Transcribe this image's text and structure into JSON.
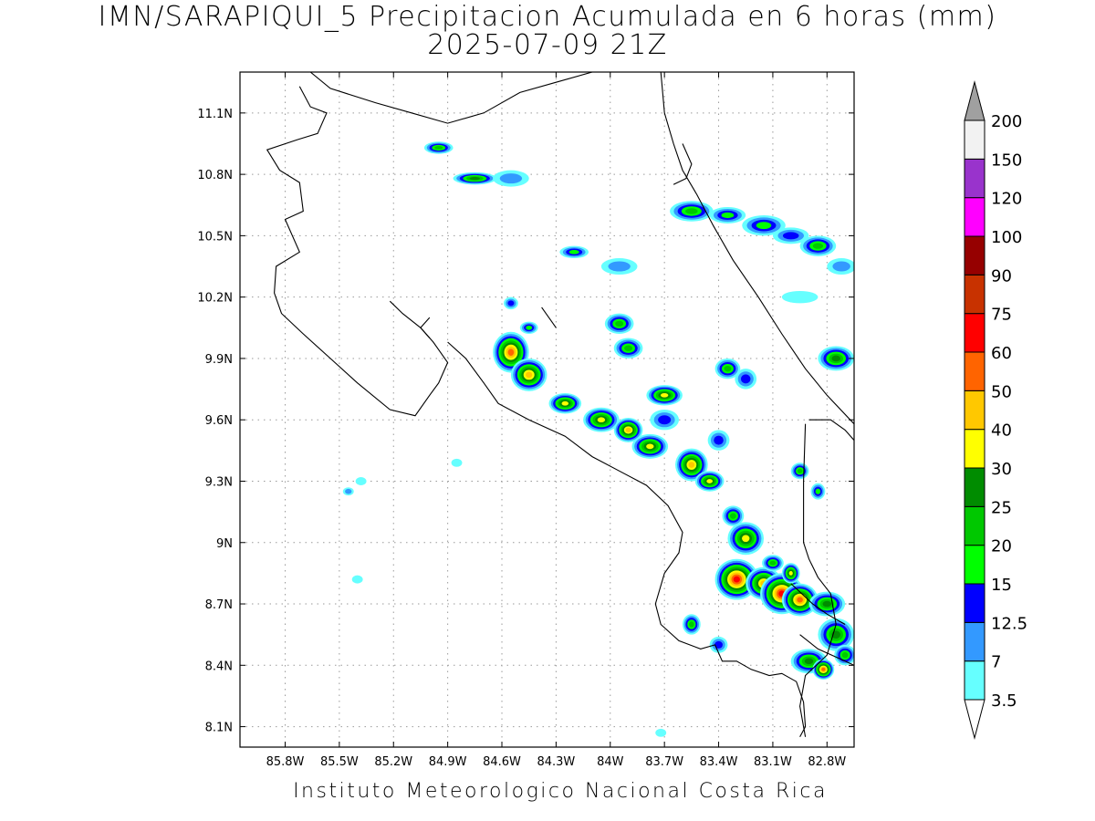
{
  "title": {
    "line1": "IMN/SARAPIQUI_5 Precipitacion Acumulada en 6 horas (mm)",
    "line2": "2025-07-09 21Z"
  },
  "footer": "Instituto Meteorologico Nacional Costa Rica",
  "map": {
    "lon_range": [
      -86.05,
      -82.65
    ],
    "lat_range": [
      8.0,
      11.3
    ],
    "lon_ticks": [
      {
        "value": -85.8,
        "label": "85.8W"
      },
      {
        "value": -85.5,
        "label": "85.5W"
      },
      {
        "value": -85.2,
        "label": "85.2W"
      },
      {
        "value": -84.9,
        "label": "84.9W"
      },
      {
        "value": -84.6,
        "label": "84.6W"
      },
      {
        "value": -84.3,
        "label": "84.3W"
      },
      {
        "value": -84.0,
        "label": "84W"
      },
      {
        "value": -83.7,
        "label": "83.7W"
      },
      {
        "value": -83.4,
        "label": "83.4W"
      },
      {
        "value": -83.1,
        "label": "83.1W"
      },
      {
        "value": -82.8,
        "label": "82.8W"
      }
    ],
    "lat_ticks": [
      {
        "value": 11.1,
        "label": "11.1N"
      },
      {
        "value": 10.8,
        "label": "10.8N"
      },
      {
        "value": 10.5,
        "label": "10.5N"
      },
      {
        "value": 10.2,
        "label": "10.2N"
      },
      {
        "value": 9.9,
        "label": "9.9N"
      },
      {
        "value": 9.6,
        "label": "9.6N"
      },
      {
        "value": 9.3,
        "label": "9.3N"
      },
      {
        "value": 9.0,
        "label": "9N"
      },
      {
        "value": 8.7,
        "label": "8.7N"
      },
      {
        "value": 8.4,
        "label": "8.4N"
      },
      {
        "value": 8.1,
        "label": "8.1N"
      }
    ],
    "grid": "dotted",
    "coastlines": [
      [
        [
          -85.72,
          11.23
        ],
        [
          -85.66,
          11.13
        ],
        [
          -85.57,
          11.1
        ],
        [
          -85.62,
          11.0
        ],
        [
          -85.73,
          10.97
        ],
        [
          -85.9,
          10.92
        ],
        [
          -85.83,
          10.82
        ],
        [
          -85.72,
          10.76
        ],
        [
          -85.7,
          10.62
        ],
        [
          -85.8,
          10.58
        ],
        [
          -85.72,
          10.42
        ],
        [
          -85.85,
          10.35
        ],
        [
          -85.86,
          10.22
        ],
        [
          -85.82,
          10.12
        ],
        [
          -85.7,
          10.02
        ],
        [
          -85.55,
          9.9
        ],
        [
          -85.4,
          9.78
        ],
        [
          -85.22,
          9.65
        ],
        [
          -85.08,
          9.62
        ],
        [
          -85.0,
          9.72
        ],
        [
          -84.95,
          9.78
        ],
        [
          -84.9,
          9.88
        ],
        [
          -84.98,
          9.98
        ],
        [
          -85.05,
          10.05
        ],
        [
          -85.15,
          10.12
        ],
        [
          -85.22,
          10.18
        ]
      ],
      [
        [
          -84.9,
          9.98
        ],
        [
          -84.8,
          9.9
        ],
        [
          -84.7,
          9.78
        ],
        [
          -84.62,
          9.68
        ],
        [
          -84.45,
          9.6
        ],
        [
          -84.25,
          9.52
        ],
        [
          -84.1,
          9.42
        ],
        [
          -83.95,
          9.35
        ],
        [
          -83.8,
          9.28
        ],
        [
          -83.68,
          9.18
        ],
        [
          -83.6,
          9.05
        ],
        [
          -83.62,
          8.95
        ],
        [
          -83.7,
          8.85
        ],
        [
          -83.75,
          8.7
        ],
        [
          -83.72,
          8.6
        ],
        [
          -83.62,
          8.52
        ],
        [
          -83.5,
          8.48
        ],
        [
          -83.42,
          8.5
        ],
        [
          -83.38,
          8.42
        ],
        [
          -83.3,
          8.42
        ],
        [
          -83.22,
          8.38
        ],
        [
          -83.12,
          8.35
        ],
        [
          -83.05,
          8.36
        ],
        [
          -82.97,
          8.32
        ],
        [
          -82.93,
          8.22
        ],
        [
          -82.92,
          8.1
        ],
        [
          -82.95,
          8.05
        ]
      ],
      [
        [
          -83.72,
          11.3
        ],
        [
          -83.7,
          11.1
        ],
        [
          -83.65,
          10.95
        ],
        [
          -83.6,
          10.82
        ],
        [
          -83.52,
          10.7
        ],
        [
          -83.43,
          10.55
        ],
        [
          -83.32,
          10.38
        ],
        [
          -83.18,
          10.2
        ],
        [
          -83.05,
          10.02
        ],
        [
          -82.92,
          9.85
        ],
        [
          -82.8,
          9.72
        ],
        [
          -82.65,
          9.58
        ]
      ],
      [
        [
          -83.6,
          10.95
        ],
        [
          -83.55,
          10.85
        ],
        [
          -83.58,
          10.78
        ],
        [
          -83.65,
          10.75
        ]
      ],
      [
        [
          -84.1,
          11.3
        ],
        [
          -84.3,
          11.25
        ],
        [
          -84.5,
          11.2
        ],
        [
          -84.7,
          11.1
        ],
        [
          -84.9,
          11.05
        ],
        [
          -85.1,
          11.1
        ],
        [
          -85.3,
          11.15
        ],
        [
          -85.55,
          11.22
        ],
        [
          -85.66,
          11.3
        ]
      ],
      [
        [
          -82.9,
          9.6
        ],
        [
          -82.78,
          9.6
        ],
        [
          -82.7,
          9.55
        ],
        [
          -82.65,
          9.5
        ]
      ],
      [
        [
          -82.92,
          9.58
        ],
        [
          -82.93,
          9.3
        ],
        [
          -82.93,
          9.0
        ],
        [
          -82.9,
          8.92
        ],
        [
          -82.85,
          8.83
        ],
        [
          -82.78,
          8.75
        ],
        [
          -82.75,
          8.6
        ],
        [
          -82.8,
          8.45
        ],
        [
          -82.92,
          8.35
        ],
        [
          -82.95,
          8.2
        ],
        [
          -82.92,
          8.05
        ]
      ],
      [
        [
          -82.95,
          8.55
        ],
        [
          -82.85,
          8.48
        ],
        [
          -82.7,
          8.42
        ],
        [
          -82.65,
          8.4
        ]
      ],
      [
        [
          -83.0,
          8.8
        ],
        [
          -82.88,
          8.7
        ],
        [
          -82.8,
          8.65
        ],
        [
          -82.7,
          8.6
        ]
      ],
      [
        [
          -84.38,
          10.15
        ],
        [
          -84.3,
          10.05
        ]
      ],
      [
        [
          -85.0,
          10.1
        ],
        [
          -85.05,
          10.05
        ],
        [
          -85.0,
          10.0
        ]
      ]
    ],
    "precip_cells": [
      [
        -84.95,
        10.93,
        0.08,
        0.03,
        20
      ],
      [
        -84.75,
        10.78,
        0.12,
        0.03,
        25
      ],
      [
        -84.55,
        10.78,
        0.1,
        0.04,
        7
      ],
      [
        -84.2,
        10.42,
        0.08,
        0.03,
        15
      ],
      [
        -83.95,
        10.35,
        0.1,
        0.04,
        7
      ],
      [
        -83.55,
        10.62,
        0.12,
        0.05,
        20
      ],
      [
        -83.35,
        10.6,
        0.1,
        0.04,
        15
      ],
      [
        -83.15,
        10.55,
        0.12,
        0.05,
        15
      ],
      [
        -83.0,
        10.5,
        0.1,
        0.04,
        12.5
      ],
      [
        -82.85,
        10.45,
        0.1,
        0.05,
        20
      ],
      [
        -82.72,
        10.35,
        0.08,
        0.04,
        7
      ],
      [
        -82.95,
        10.2,
        0.1,
        0.03,
        3.5
      ],
      [
        -84.55,
        10.17,
        0.04,
        0.03,
        12.5
      ],
      [
        -84.45,
        10.05,
        0.05,
        0.03,
        15
      ],
      [
        -84.55,
        9.93,
        0.1,
        0.1,
        50
      ],
      [
        -84.45,
        9.82,
        0.1,
        0.08,
        40
      ],
      [
        -83.95,
        10.07,
        0.08,
        0.05,
        20
      ],
      [
        -83.9,
        9.95,
        0.08,
        0.05,
        20
      ],
      [
        -84.25,
        9.68,
        0.09,
        0.05,
        30
      ],
      [
        -84.05,
        9.6,
        0.1,
        0.06,
        30
      ],
      [
        -83.9,
        9.55,
        0.08,
        0.06,
        40
      ],
      [
        -83.78,
        9.47,
        0.1,
        0.06,
        30
      ],
      [
        -83.7,
        9.6,
        0.08,
        0.05,
        12.5
      ],
      [
        -83.55,
        9.38,
        0.09,
        0.08,
        40
      ],
      [
        -83.45,
        9.3,
        0.08,
        0.05,
        30
      ],
      [
        -83.35,
        9.85,
        0.07,
        0.05,
        20
      ],
      [
        -83.25,
        9.8,
        0.06,
        0.05,
        12.5
      ],
      [
        -83.7,
        9.72,
        0.1,
        0.05,
        30
      ],
      [
        -83.4,
        9.5,
        0.06,
        0.05,
        12.5
      ],
      [
        -83.32,
        9.13,
        0.06,
        0.05,
        20
      ],
      [
        -83.25,
        9.02,
        0.1,
        0.08,
        30
      ],
      [
        -83.3,
        8.82,
        0.12,
        0.1,
        60
      ],
      [
        -83.15,
        8.8,
        0.1,
        0.08,
        40
      ],
      [
        -83.05,
        8.75,
        0.12,
        0.1,
        60
      ],
      [
        -82.95,
        8.72,
        0.1,
        0.08,
        50
      ],
      [
        -82.8,
        8.7,
        0.1,
        0.06,
        25
      ],
      [
        -82.75,
        8.55,
        0.1,
        0.08,
        25
      ],
      [
        -82.7,
        8.45,
        0.06,
        0.05,
        20
      ],
      [
        -82.9,
        8.42,
        0.1,
        0.06,
        25
      ],
      [
        -82.82,
        8.38,
        0.06,
        0.05,
        50
      ],
      [
        -83.55,
        8.6,
        0.05,
        0.05,
        20
      ],
      [
        -83.4,
        8.5,
        0.05,
        0.04,
        12.5
      ],
      [
        -82.75,
        9.9,
        0.1,
        0.06,
        25
      ],
      [
        -82.95,
        9.35,
        0.05,
        0.04,
        20
      ],
      [
        -82.85,
        9.25,
        0.04,
        0.04,
        15
      ],
      [
        -83.1,
        8.9,
        0.06,
        0.04,
        20
      ],
      [
        -83.0,
        8.85,
        0.05,
        0.05,
        30
      ],
      [
        -85.38,
        9.3,
        0.03,
        0.02,
        3.5
      ],
      [
        -85.45,
        9.25,
        0.03,
        0.02,
        7
      ],
      [
        -85.4,
        8.82,
        0.03,
        0.02,
        3.5
      ],
      [
        -84.85,
        9.39,
        0.03,
        0.02,
        3.5
      ],
      [
        -83.72,
        8.07,
        0.03,
        0.02,
        3.5
      ]
    ]
  },
  "colorbar": {
    "levels": [
      "3.5",
      "7",
      "12.5",
      "15",
      "20",
      "25",
      "30",
      "40",
      "50",
      "60",
      "75",
      "90",
      "100",
      "120",
      "150",
      "200"
    ],
    "colors": [
      "#ffffff",
      "#66ffff",
      "#3399ff",
      "#0000ff",
      "#00ff00",
      "#00c800",
      "#008c00",
      "#ffff00",
      "#ffc800",
      "#ff6400",
      "#ff0000",
      "#c83200",
      "#960000",
      "#ff00ff",
      "#9933cc",
      "#f2f2f2",
      "#a0a0a0"
    ]
  }
}
